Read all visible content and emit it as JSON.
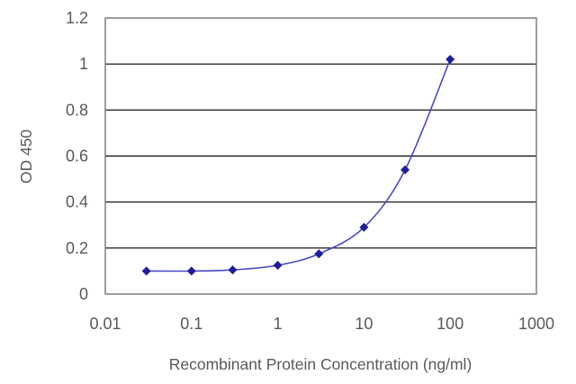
{
  "chart_data": {
    "type": "scatter",
    "title": "",
    "xlabel": "Recombinant Protein Concentration (ng/ml)",
    "ylabel": "OD 450",
    "x_scale": "log",
    "xlim": [
      0.01,
      1000
    ],
    "ylim": [
      0,
      1.2
    ],
    "x_ticks": [
      "0.01",
      "0.1",
      "1",
      "10",
      "100",
      "1000"
    ],
    "y_ticks": [
      "0",
      "0.2",
      "0.4",
      "0.6",
      "0.8",
      "1",
      "1.2"
    ],
    "grid": "horizontal",
    "series": [
      {
        "x": [
          0.03,
          0.1,
          0.3,
          1,
          3,
          10,
          30,
          100
        ],
        "y": [
          0.1,
          0.1,
          0.105,
          0.125,
          0.175,
          0.29,
          0.54,
          1.02
        ],
        "connector": "smooth curve"
      }
    ],
    "colors": {
      "series": "#1f1f9a",
      "curve": "#4a4ac8",
      "grid": "#000000",
      "frame": "#7f7f7f",
      "text": "#595959"
    }
  }
}
